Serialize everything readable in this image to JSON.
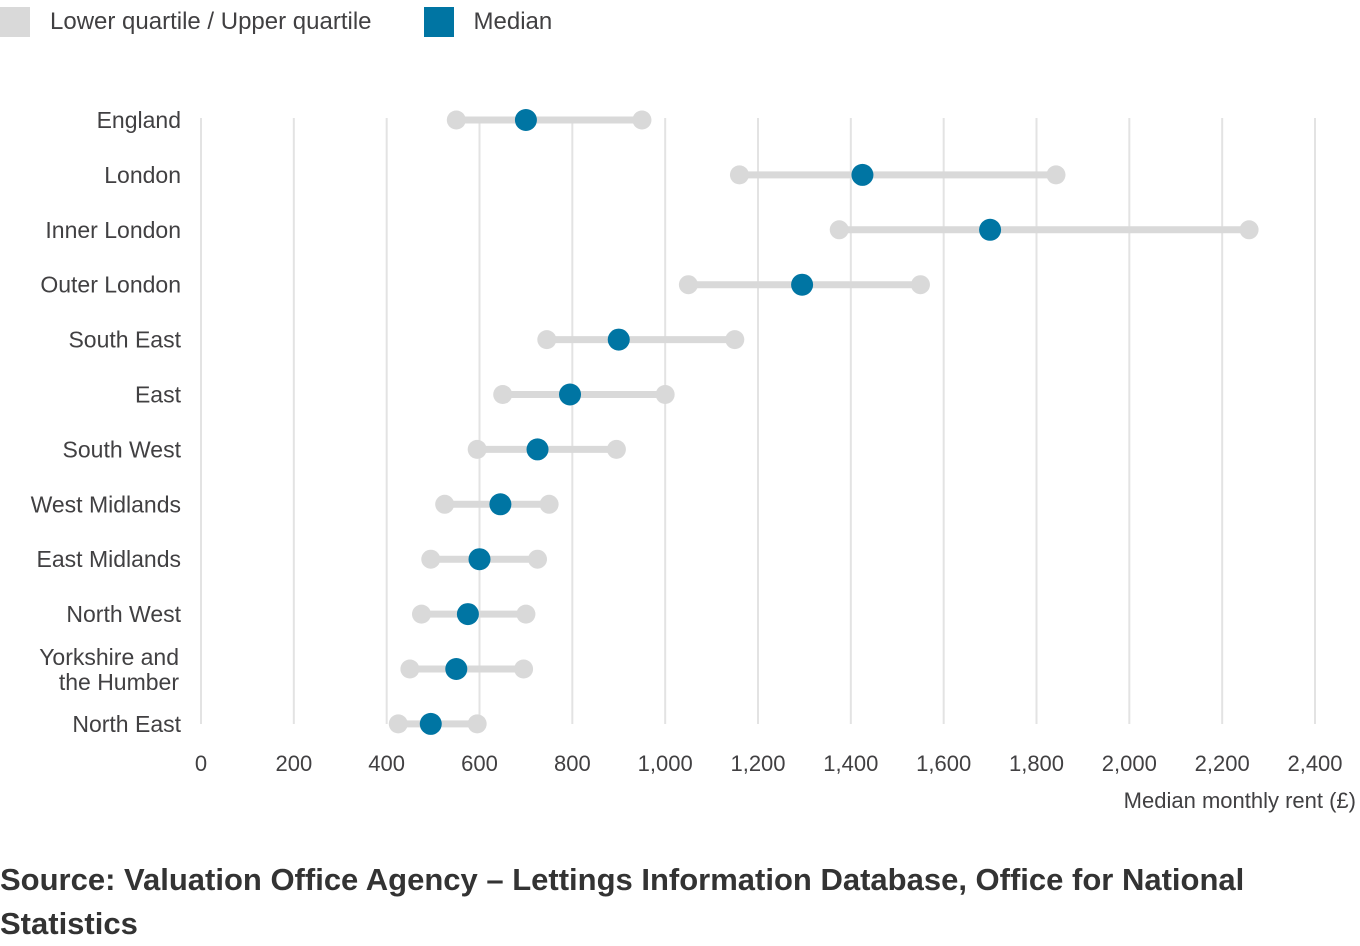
{
  "legend": [
    {
      "label": "Lower quartile / Upper quartile",
      "color": "#d9d9d9",
      "icon": "square-swatch"
    },
    {
      "label": "Median",
      "color": "#0075a3",
      "icon": "square-swatch"
    }
  ],
  "source": "Source: Valuation Office Agency – Lettings Information Database, Office for National Statistics",
  "chart_data": {
    "type": "dot-range",
    "xlabel": "Median monthly rent (£)",
    "xlim": [
      0,
      2400
    ],
    "xticks": [
      0,
      200,
      400,
      600,
      800,
      1000,
      1200,
      1400,
      1600,
      1800,
      2000,
      2200,
      2400
    ],
    "xtick_labels": [
      "0",
      "200",
      "400",
      "600",
      "800",
      "1,000",
      "1,200",
      "1,400",
      "1,600",
      "1,800",
      "2,000",
      "2,200",
      "2,400"
    ],
    "grid": "vertical",
    "legend_position": "top-left",
    "colors": {
      "quartile": "#d9d9d9",
      "median": "#0075a3"
    },
    "categories": [
      {
        "label": [
          "England"
        ],
        "lower": 550,
        "median": 700,
        "upper": 950
      },
      {
        "label": [
          "London"
        ],
        "lower": 1160,
        "median": 1425,
        "upper": 1842
      },
      {
        "label": [
          "Inner London"
        ],
        "lower": 1375,
        "median": 1700,
        "upper": 2258
      },
      {
        "label": [
          "Outer London"
        ],
        "lower": 1050,
        "median": 1295,
        "upper": 1550
      },
      {
        "label": [
          "South East"
        ],
        "lower": 745,
        "median": 900,
        "upper": 1150
      },
      {
        "label": [
          "East"
        ],
        "lower": 650,
        "median": 795,
        "upper": 1000
      },
      {
        "label": [
          "South West"
        ],
        "lower": 595,
        "median": 725,
        "upper": 895
      },
      {
        "label": [
          "West Midlands"
        ],
        "lower": 525,
        "median": 645,
        "upper": 750
      },
      {
        "label": [
          "East Midlands"
        ],
        "lower": 495,
        "median": 600,
        "upper": 725
      },
      {
        "label": [
          "North West"
        ],
        "lower": 475,
        "median": 575,
        "upper": 700
      },
      {
        "label": [
          "Yorkshire and",
          "the Humber"
        ],
        "lower": 450,
        "median": 550,
        "upper": 695
      },
      {
        "label": [
          "North East"
        ],
        "lower": 425,
        "median": 495,
        "upper": 595
      }
    ]
  }
}
